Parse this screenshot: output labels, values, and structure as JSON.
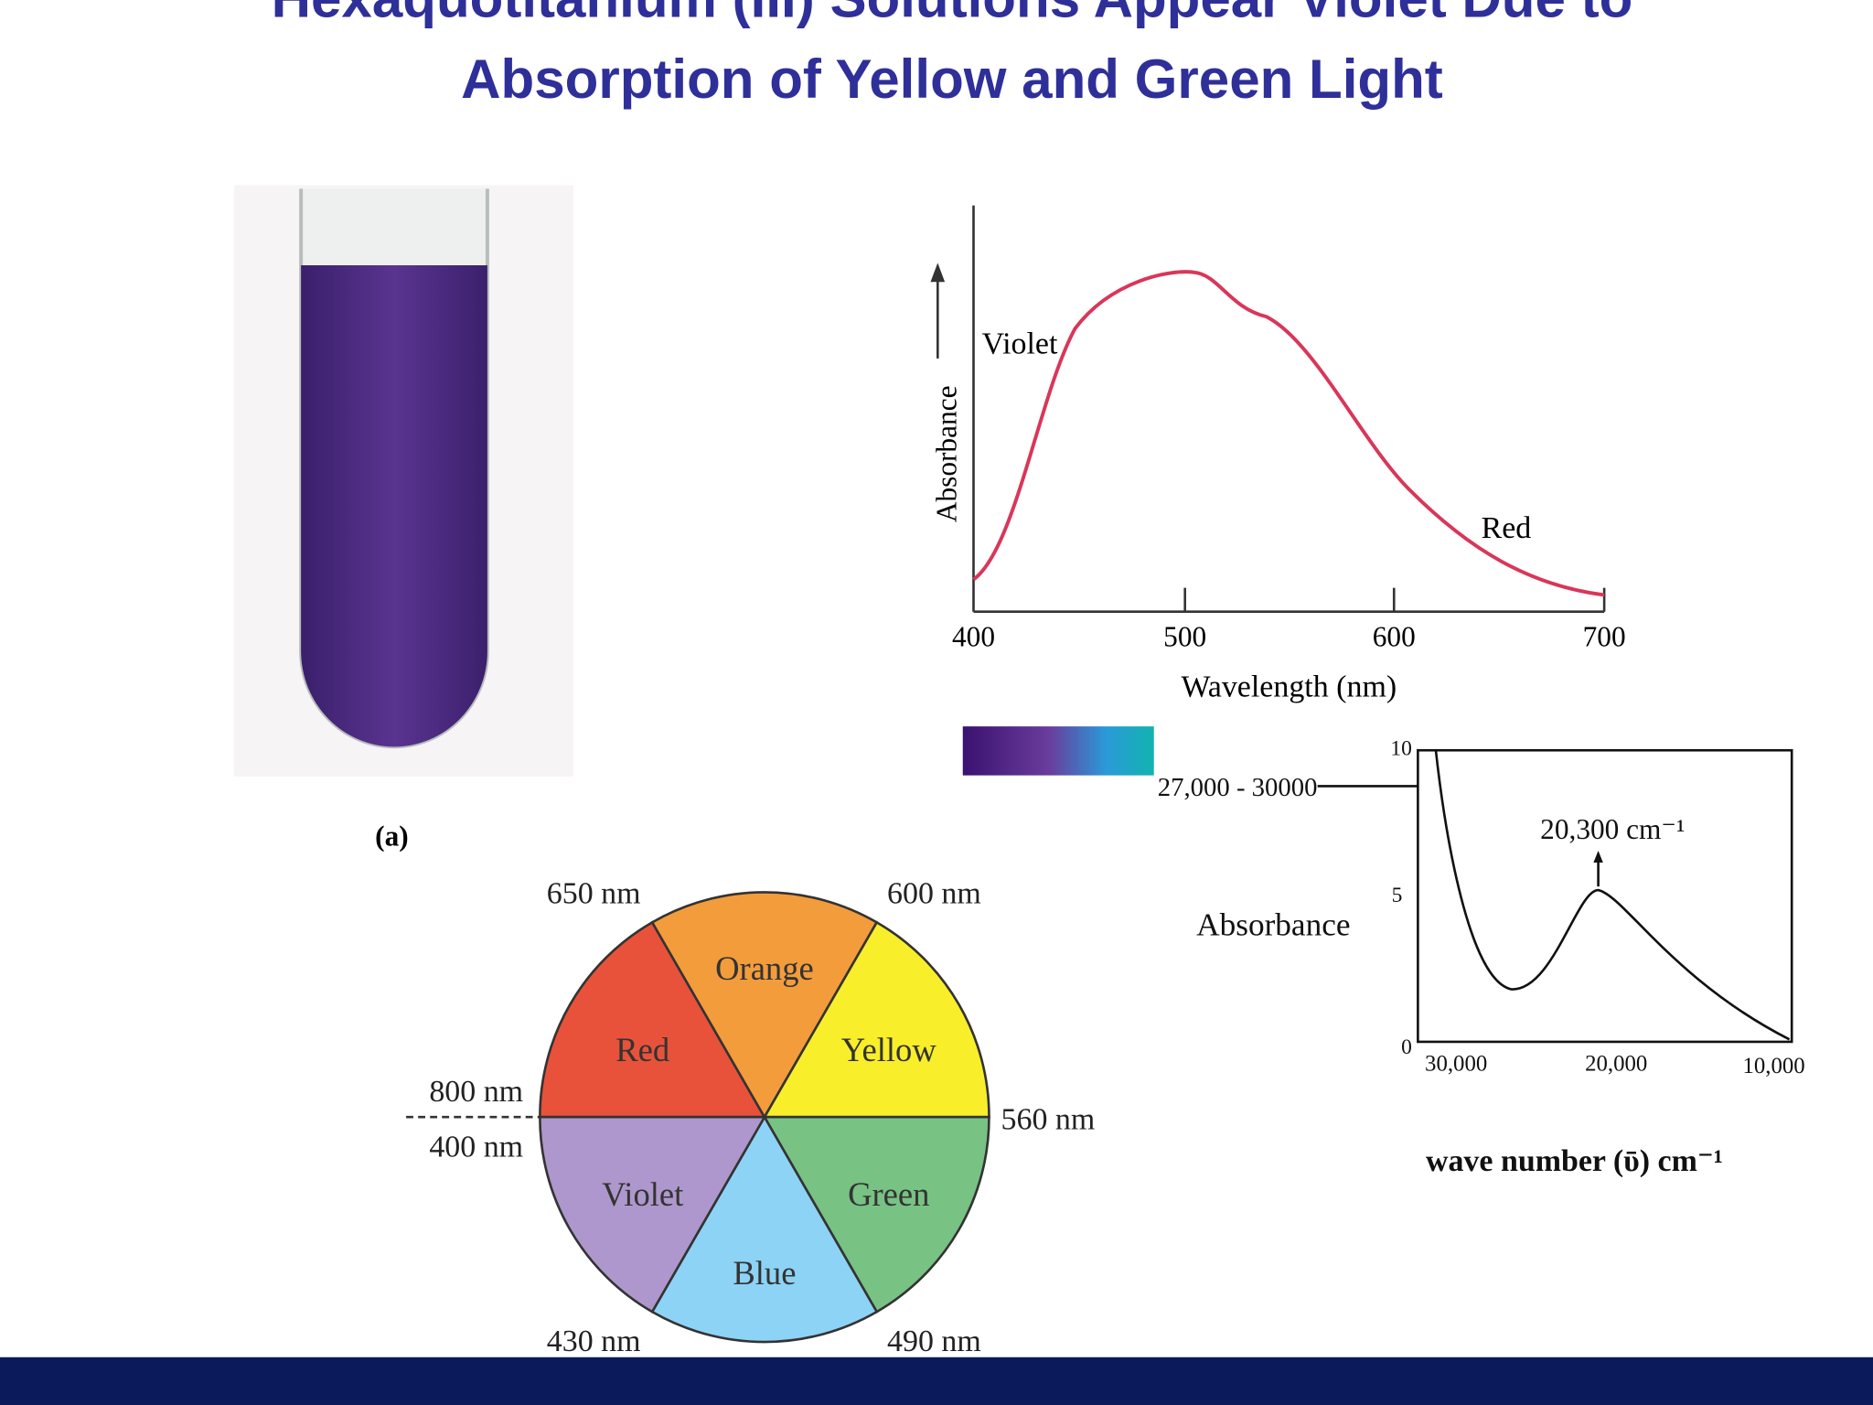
{
  "header": {
    "title_line1": "Hexaquotitanium (III) Solutions Appear Violet Due to",
    "title_line2": "Absorption of Yellow and Green Light"
  },
  "figure_a": {
    "label": "(a)"
  },
  "spectrum": {
    "y_label": "Absorbance",
    "x_label": "Wavelength (nm)",
    "x_ticks": [
      "400",
      "500",
      "600",
      "700"
    ],
    "annotations": [
      "Violet",
      "Red"
    ]
  },
  "color_wheel": {
    "segments": [
      "Red",
      "Orange",
      "Yellow",
      "Green",
      "Blue",
      "Violet"
    ],
    "boundaries": [
      "650 nm",
      "600 nm",
      "560 nm",
      "490 nm",
      "430 nm",
      "400 nm",
      "800 nm"
    ]
  },
  "wavenumber_spectrum": {
    "y_label": "Absorbance",
    "y_ticks": [
      "10",
      "5",
      "0"
    ],
    "x_ticks": [
      "30,000",
      "20,000",
      "10,000"
    ],
    "x_label": "wave number (ῡ) cm⁻¹",
    "peak_label": "20,300 cm⁻¹",
    "range_label": "27,000 - 30000"
  }
}
